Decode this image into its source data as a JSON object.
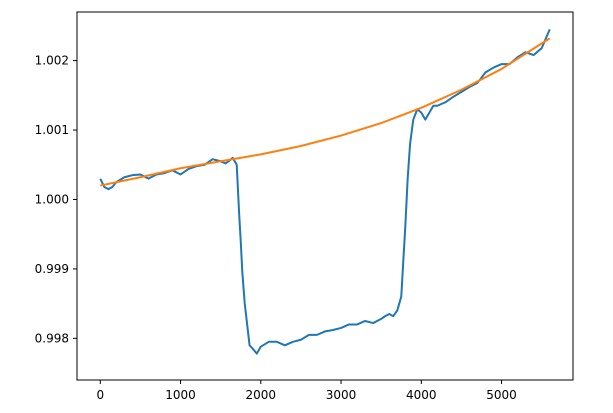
{
  "chart_data": {
    "type": "line",
    "title": "",
    "xlabel": "",
    "ylabel": "",
    "xlim": [
      -290,
      5890
    ],
    "ylim": [
      0.9974,
      1.0027
    ],
    "grid": false,
    "x_ticks": [
      {
        "value": 0,
        "label": "0"
      },
      {
        "value": 1000,
        "label": "1000"
      },
      {
        "value": 2000,
        "label": "2000"
      },
      {
        "value": 3000,
        "label": "3000"
      },
      {
        "value": 4000,
        "label": "4000"
      },
      {
        "value": 5000,
        "label": "5000"
      }
    ],
    "y_ticks": [
      {
        "value": 0.998,
        "label": "0.998"
      },
      {
        "value": 0.999,
        "label": "0.999"
      },
      {
        "value": 1.0,
        "label": "1.000"
      },
      {
        "value": 1.001,
        "label": "1.001"
      },
      {
        "value": 1.002,
        "label": "1.002"
      }
    ],
    "series": [
      {
        "color": "#1f77b4",
        "x": [
          0,
          50,
          100,
          150,
          200,
          300,
          400,
          500,
          600,
          700,
          800,
          900,
          1000,
          1100,
          1200,
          1300,
          1400,
          1500,
          1560,
          1600,
          1650,
          1700,
          1730,
          1750,
          1770,
          1800,
          1830,
          1860,
          1900,
          1950,
          2000,
          2100,
          2200,
          2300,
          2400,
          2500,
          2600,
          2700,
          2800,
          2900,
          3000,
          3100,
          3200,
          3300,
          3400,
          3500,
          3550,
          3600,
          3650,
          3700,
          3750,
          3780,
          3800,
          3830,
          3860,
          3900,
          3950,
          4000,
          4050,
          4100,
          4150,
          4200,
          4300,
          4400,
          4500,
          4600,
          4700,
          4800,
          4900,
          5000,
          5100,
          5200,
          5300,
          5400,
          5500,
          5600
        ],
        "y": [
          1.0003,
          1.00018,
          1.00015,
          1.00018,
          1.00025,
          1.00032,
          1.00035,
          1.00036,
          1.0003,
          1.00036,
          1.00038,
          1.00042,
          1.00036,
          1.00044,
          1.00048,
          1.0005,
          1.00058,
          1.00055,
          1.00052,
          1.00055,
          1.0006,
          1.0005,
          0.9998,
          0.9994,
          0.99895,
          0.9985,
          0.9982,
          0.9979,
          0.99785,
          0.99778,
          0.99788,
          0.99795,
          0.99795,
          0.9979,
          0.99795,
          0.99798,
          0.99805,
          0.99805,
          0.9981,
          0.99812,
          0.99815,
          0.9982,
          0.9982,
          0.99825,
          0.99822,
          0.99828,
          0.99832,
          0.99835,
          0.99832,
          0.9984,
          0.9986,
          0.9992,
          0.9996,
          1.0003,
          1.0008,
          1.00115,
          1.0013,
          1.00125,
          1.00115,
          1.00125,
          1.00135,
          1.00135,
          1.0014,
          1.00148,
          1.00155,
          1.00162,
          1.00168,
          1.00183,
          1.0019,
          1.00195,
          1.00195,
          1.00205,
          1.00212,
          1.00208,
          1.00218,
          1.00245
        ]
      },
      {
        "color": "#ff7f0e",
        "x": [
          0,
          500,
          1000,
          1500,
          2000,
          2500,
          3000,
          3500,
          4000,
          4500,
          5000,
          5600
        ],
        "y": [
          1.0002,
          1.00032,
          1.00045,
          1.00055,
          1.00065,
          1.00077,
          1.00092,
          1.0011,
          1.00132,
          1.00158,
          1.00188,
          1.00232
        ]
      }
    ]
  }
}
